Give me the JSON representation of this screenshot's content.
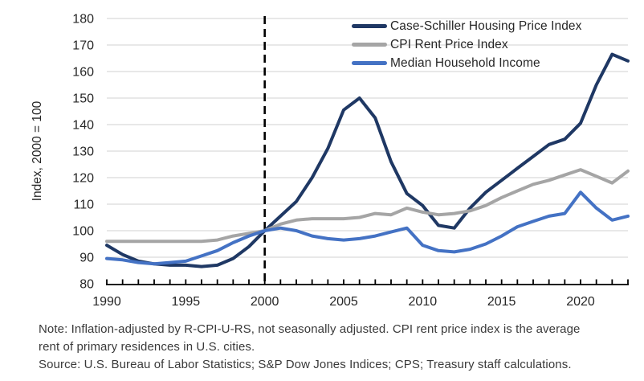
{
  "chart_data": {
    "type": "line",
    "title": "",
    "xlabel": "",
    "ylabel": "Index, 2000 = 100",
    "ylim": [
      80,
      180
    ],
    "ytick_step": 10,
    "xlim": [
      1990,
      2023
    ],
    "xticks_labeled": [
      1990,
      1995,
      2000,
      2005,
      2010,
      2015,
      2020
    ],
    "minor_xticks": "every year",
    "grid": "horizontal",
    "reference_line_x": 2000,
    "reference_line_style": "black dashed vertical",
    "legend_position": "top-right-inside",
    "x": [
      1990,
      1991,
      1992,
      1993,
      1994,
      1995,
      1996,
      1997,
      1998,
      1999,
      2000,
      2001,
      2002,
      2003,
      2004,
      2005,
      2006,
      2007,
      2008,
      2009,
      2010,
      2011,
      2012,
      2013,
      2014,
      2015,
      2016,
      2017,
      2018,
      2019,
      2020,
      2021,
      2022,
      2023
    ],
    "series": [
      {
        "name": "Case-Schiller Housing Price Index",
        "color": "#1F3864",
        "values": [
          94.5,
          91,
          88.5,
          87.5,
          87,
          87,
          86.5,
          87,
          89.5,
          94,
          100,
          105.5,
          111,
          120,
          131,
          145.5,
          150,
          142.5,
          126,
          114,
          109.5,
          102,
          101,
          108.5,
          114.5,
          119,
          123.5,
          128,
          132.5,
          134.5,
          140.5,
          155,
          166.5,
          164
        ]
      },
      {
        "name": "CPI Rent Price Index",
        "color": "#A5A5A5",
        "values": [
          96,
          96,
          96,
          96,
          96,
          96,
          96,
          96.5,
          98,
          99,
          100,
          102.5,
          104,
          104.5,
          104.5,
          104.5,
          105,
          106.5,
          106,
          108.5,
          107,
          106,
          106.5,
          107.5,
          109.5,
          112.5,
          115,
          117.5,
          119,
          121,
          123,
          120.5,
          118,
          122.5
        ]
      },
      {
        "name": "Median Household Income",
        "color": "#4472C4",
        "values": [
          89.5,
          89,
          88,
          87.5,
          88,
          88.5,
          90.5,
          92.5,
          95.5,
          98,
          100,
          101,
          100,
          98,
          97,
          96.5,
          97,
          98,
          99.5,
          101,
          94.5,
          92.5,
          92,
          93,
          95,
          98,
          101.5,
          103.5,
          105.5,
          106.5,
          114.5,
          108.5,
          104,
          105.5
        ]
      }
    ]
  },
  "colors": {
    "gridline": "#D9D9D9",
    "axis": "#000000",
    "tick_label": "#262626",
    "note_text": "#3A3A3A",
    "background": "#FFFFFF"
  },
  "notes": {
    "line1": "Note: Inflation-adjusted by R-CPI-U-RS, not seasonally adjusted. CPI rent price index is the average",
    "line2": "rent of primary residences in U.S. cities.",
    "line3": "Source: U.S. Bureau of Labor Statistics; S&P Dow Jones Indices; CPS; Treasury staff calculations."
  }
}
